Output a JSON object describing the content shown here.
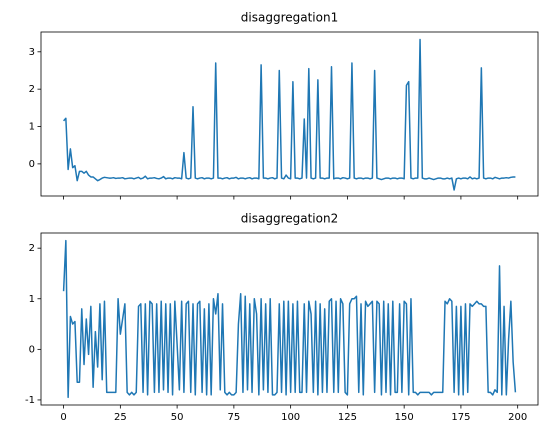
{
  "chart_data": [
    {
      "type": "line",
      "title": "disaggregation1",
      "color": "#1f77b4",
      "show_xticklabels": false,
      "x": [
        0,
        1,
        2,
        3,
        4,
        5,
        6,
        7,
        8,
        9,
        10,
        11,
        12,
        13,
        14,
        15,
        16,
        17,
        18,
        19,
        20,
        21,
        22,
        23,
        24,
        25,
        26,
        27,
        28,
        29,
        30,
        31,
        32,
        33,
        34,
        35,
        36,
        37,
        38,
        39,
        40,
        41,
        42,
        43,
        44,
        45,
        46,
        47,
        48,
        49,
        50,
        51,
        52,
        53,
        54,
        55,
        56,
        57,
        58,
        59,
        60,
        61,
        62,
        63,
        64,
        65,
        66,
        67,
        68,
        69,
        70,
        71,
        72,
        73,
        74,
        75,
        76,
        77,
        78,
        79,
        80,
        81,
        82,
        83,
        84,
        85,
        86,
        87,
        88,
        89,
        90,
        91,
        92,
        93,
        94,
        95,
        96,
        97,
        98,
        99,
        100,
        101,
        102,
        103,
        104,
        105,
        106,
        107,
        108,
        109,
        110,
        111,
        112,
        113,
        114,
        115,
        116,
        117,
        118,
        119,
        120,
        121,
        122,
        123,
        124,
        125,
        126,
        127,
        128,
        129,
        130,
        131,
        132,
        133,
        134,
        135,
        136,
        137,
        138,
        139,
        140,
        141,
        142,
        143,
        144,
        145,
        146,
        147,
        148,
        149,
        150,
        151,
        152,
        153,
        154,
        155,
        156,
        157,
        158,
        159,
        160,
        161,
        162,
        163,
        164,
        165,
        166,
        167,
        168,
        169,
        170,
        171,
        172,
        173,
        174,
        175,
        176,
        177,
        178,
        179,
        180,
        181,
        182,
        183,
        184,
        185,
        186,
        187,
        188,
        189,
        190,
        191,
        192,
        193,
        194,
        195,
        196,
        197,
        198,
        199
      ],
      "values": [
        1.15,
        1.22,
        -0.15,
        0.4,
        -0.1,
        -0.05,
        -0.45,
        -0.2,
        -0.2,
        -0.25,
        -0.2,
        -0.3,
        -0.35,
        -0.35,
        -0.4,
        -0.45,
        -0.42,
        -0.38,
        -0.36,
        -0.37,
        -0.38,
        -0.38,
        -0.37,
        -0.39,
        -0.38,
        -0.38,
        -0.37,
        -0.4,
        -0.39,
        -0.38,
        -0.38,
        -0.4,
        -0.38,
        -0.36,
        -0.4,
        -0.38,
        -0.33,
        -0.4,
        -0.38,
        -0.38,
        -0.37,
        -0.39,
        -0.4,
        -0.38,
        -0.34,
        -0.4,
        -0.38,
        -0.38,
        -0.4,
        -0.37,
        -0.38,
        -0.38,
        -0.4,
        0.3,
        -0.38,
        -0.4,
        -0.38,
        1.53,
        -0.38,
        -0.4,
        -0.38,
        -0.37,
        -0.4,
        -0.38,
        -0.38,
        -0.4,
        -0.38,
        2.7,
        -0.38,
        -0.38,
        -0.4,
        -0.38,
        -0.37,
        -0.4,
        -0.38,
        -0.38,
        -0.36,
        -0.4,
        -0.38,
        -0.38,
        -0.4,
        -0.38,
        -0.37,
        -0.4,
        -0.38,
        -0.38,
        -0.4,
        2.65,
        -0.38,
        -0.38,
        -0.4,
        -0.38,
        -0.37,
        -0.4,
        -0.38,
        2.5,
        -0.38,
        -0.4,
        -0.3,
        -0.38,
        -0.4,
        2.2,
        -0.38,
        -0.38,
        -0.4,
        -0.38,
        1.2,
        -0.38,
        2.55,
        -0.38,
        -0.4,
        -0.38,
        2.25,
        -0.38,
        -0.38,
        -0.4,
        -0.38,
        -0.38,
        2.6,
        -0.4,
        -0.38,
        -0.38,
        -0.4,
        -0.37,
        -0.38,
        -0.4,
        -0.38,
        2.7,
        -0.38,
        -0.4,
        -0.38,
        -0.38,
        -0.4,
        -0.38,
        -0.38,
        -0.4,
        -0.38,
        2.5,
        -0.38,
        -0.4,
        -0.42,
        -0.4,
        -0.38,
        -0.38,
        -0.4,
        -0.38,
        -0.38,
        -0.4,
        -0.38,
        -0.38,
        -0.4,
        2.1,
        2.2,
        -0.38,
        -0.4,
        -0.38,
        -0.38,
        3.33,
        -0.38,
        -0.4,
        -0.4,
        -0.38,
        -0.4,
        -0.42,
        -0.4,
        -0.38,
        -0.38,
        -0.4,
        -0.4,
        -0.38,
        -0.4,
        -0.38,
        -0.7,
        -0.4,
        -0.38,
        -0.4,
        -0.38,
        -0.38,
        -0.4,
        -0.35,
        -0.4,
        -0.38,
        -0.4,
        -0.38,
        2.57,
        -0.38,
        -0.4,
        -0.38,
        -0.38,
        -0.4,
        -0.36,
        -0.38,
        -0.4,
        -0.38,
        -0.38,
        -0.37,
        -0.38,
        -0.36,
        -0.35,
        -0.35
      ],
      "xlim": [
        -9.95,
        208.95
      ],
      "xticks": [
        0,
        25,
        50,
        75,
        100,
        125,
        150,
        175,
        200
      ],
      "ylim": [
        -0.86,
        3.53
      ],
      "yticks": [
        0,
        1,
        2,
        3
      ]
    },
    {
      "type": "line",
      "title": "disaggregation2",
      "color": "#1f77b4",
      "show_xticklabels": true,
      "x": [
        0,
        1,
        2,
        3,
        4,
        5,
        6,
        7,
        8,
        9,
        10,
        11,
        12,
        13,
        14,
        15,
        16,
        17,
        18,
        19,
        20,
        21,
        22,
        23,
        24,
        25,
        26,
        27,
        28,
        29,
        30,
        31,
        32,
        33,
        34,
        35,
        36,
        37,
        38,
        39,
        40,
        41,
        42,
        43,
        44,
        45,
        46,
        47,
        48,
        49,
        50,
        51,
        52,
        53,
        54,
        55,
        56,
        57,
        58,
        59,
        60,
        61,
        62,
        63,
        64,
        65,
        66,
        67,
        68,
        69,
        70,
        71,
        72,
        73,
        74,
        75,
        76,
        77,
        78,
        79,
        80,
        81,
        82,
        83,
        84,
        85,
        86,
        87,
        88,
        89,
        90,
        91,
        92,
        93,
        94,
        95,
        96,
        97,
        98,
        99,
        100,
        101,
        102,
        103,
        104,
        105,
        106,
        107,
        108,
        109,
        110,
        111,
        112,
        113,
        114,
        115,
        116,
        117,
        118,
        119,
        120,
        121,
        122,
        123,
        124,
        125,
        126,
        127,
        128,
        129,
        130,
        131,
        132,
        133,
        134,
        135,
        136,
        137,
        138,
        139,
        140,
        141,
        142,
        143,
        144,
        145,
        146,
        147,
        148,
        149,
        150,
        151,
        152,
        153,
        154,
        155,
        156,
        157,
        158,
        159,
        160,
        161,
        162,
        163,
        164,
        165,
        166,
        167,
        168,
        169,
        170,
        171,
        172,
        173,
        174,
        175,
        176,
        177,
        178,
        179,
        180,
        181,
        182,
        183,
        184,
        185,
        186,
        187,
        188,
        189,
        190,
        191,
        192,
        193,
        194,
        195,
        196,
        197,
        198,
        199
      ],
      "values": [
        1.15,
        2.15,
        -0.95,
        0.65,
        0.5,
        0.55,
        -0.65,
        -0.65,
        0.8,
        -0.3,
        0.6,
        -0.1,
        0.85,
        -0.75,
        0.35,
        -0.35,
        0.9,
        -0.6,
        0.95,
        -0.85,
        -0.85,
        -0.85,
        -0.85,
        -0.85,
        1.0,
        0.3,
        0.6,
        0.9,
        -0.85,
        -0.9,
        -0.85,
        -0.9,
        -0.85,
        0.85,
        0.9,
        -0.85,
        0.9,
        -0.9,
        0.95,
        0.9,
        -0.85,
        0.9,
        -0.85,
        0.95,
        -0.8,
        0.9,
        -0.85,
        0.9,
        -0.9,
        0.95,
        0.1,
        -0.8,
        0.95,
        -0.85,
        0.9,
        0.95,
        -0.85,
        0.9,
        -0.9,
        0.9,
        0.95,
        -0.85,
        0.8,
        -0.9,
        0.9,
        -0.9,
        1.0,
        0.7,
        1.1,
        -0.8,
        0.9,
        -0.85,
        -0.9,
        -0.85,
        -0.9,
        -0.9,
        -0.85,
        0.5,
        1.1,
        -0.85,
        1.05,
        -0.8,
        0.9,
        -0.85,
        1.0,
        0.7,
        -0.9,
        1.0,
        -0.8,
        0.9,
        -0.85,
        1.0,
        -0.9,
        -0.9,
        -0.85,
        0.9,
        -0.85,
        0.95,
        -0.9,
        0.95,
        -0.85,
        0.9,
        -0.85,
        0.95,
        -0.85,
        -0.85,
        0.9,
        -0.85,
        0.95,
        0.7,
        -0.85,
        0.95,
        -0.9,
        0.9,
        -0.85,
        0.8,
        -0.85,
        0.95,
        1.0,
        -0.85,
        0.95,
        -0.85,
        1.0,
        0.9,
        -0.85,
        -0.9,
        0.9,
        1.0,
        1.0,
        1.05,
        -0.85,
        0.9,
        -0.9,
        0.95,
        0.85,
        0.9,
        0.95,
        -0.85,
        0.95,
        0.9,
        -0.9,
        0.95,
        -0.85,
        0.9,
        -0.9,
        0.95,
        -0.85,
        -0.85,
        0.9,
        -0.85,
        0.95,
        0.9,
        -0.9,
        1.0,
        -0.85,
        -0.85,
        -0.9,
        -0.85,
        -0.85,
        -0.85,
        -0.85,
        -0.85,
        -0.9,
        -0.85,
        -0.85,
        -0.85,
        -0.85,
        -0.85,
        0.95,
        0.9,
        1.0,
        0.95,
        -0.85,
        0.85,
        -0.9,
        0.85,
        -0.9,
        0.9,
        -0.85,
        0.9,
        0.85,
        0.9,
        0.95,
        0.9,
        0.9,
        0.85,
        0.85,
        -0.85,
        -0.85,
        -0.9,
        -0.8,
        -0.85,
        1.65,
        -0.9,
        0.85,
        -0.9,
        0.2,
        0.95,
        -0.25,
        -0.85
      ],
      "xlim": [
        -9.95,
        208.95
      ],
      "xticks": [
        0,
        25,
        50,
        75,
        100,
        125,
        150,
        175,
        200
      ],
      "ylim": [
        -1.1,
        2.3
      ],
      "yticks": [
        -1,
        0,
        1,
        2
      ]
    }
  ]
}
